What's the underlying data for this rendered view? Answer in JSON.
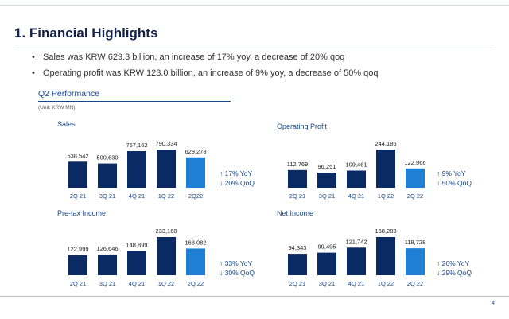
{
  "header": {
    "title": "1. Financial Highlights",
    "bullets": [
      "Sales was KRW 629.3 billion, an increase of 17% yoy, a decrease of 20% qoq",
      "Operating profit was KRW 123.0 billion, an increase of 9% yoy, a decrease of 50% qoq"
    ],
    "bullet_mark": "•"
  },
  "section": {
    "title": "Q2 Performance",
    "unit": "(Unit: KRW MN)"
  },
  "colors": {
    "dark_bar": "#0a2a63",
    "highlight_bar": "#1f7fd4",
    "accent": "#15478c"
  },
  "chart_data": [
    {
      "type": "bar",
      "title": "Sales",
      "categories": [
        "2Q 21",
        "3Q 21",
        "4Q 21",
        "1Q 22",
        "2Q22"
      ],
      "values": [
        538542,
        500630,
        757162,
        790334,
        629278
      ],
      "labels": [
        "538,542",
        "500,630",
        "757,162",
        "790,334",
        "629,278"
      ],
      "highlight_index": 4,
      "change_lines": [
        "↑ 17%  YoY",
        "↓ 20% QoQ"
      ]
    },
    {
      "type": "bar",
      "title": "Operating Profit",
      "categories": [
        "2Q 21",
        "3Q 21",
        "4Q 21",
        "1Q 22",
        "2Q 22"
      ],
      "values": [
        112769,
        96251,
        109461,
        244186,
        122966
      ],
      "labels": [
        "112,769",
        "96,251",
        "109,461",
        "244,186",
        "122,966"
      ],
      "highlight_index": 4,
      "change_lines": [
        "↑ 9%   YoY",
        "↓ 50% QoQ"
      ]
    },
    {
      "type": "bar",
      "title": "Pre-tax Income",
      "categories": [
        "2Q 21",
        "3Q 21",
        "4Q 21",
        "1Q 22",
        "2Q 22"
      ],
      "values": [
        122999,
        126646,
        148899,
        233160,
        163082
      ],
      "labels": [
        "122,999",
        "126,646",
        "148,899",
        "233,160",
        "163,082"
      ],
      "highlight_index": 4,
      "change_lines": [
        "↑ 33%  YoY",
        "↓ 30% QoQ"
      ]
    },
    {
      "type": "bar",
      "title": "Net Income",
      "categories": [
        "2Q 21",
        "3Q 21",
        "4Q 21",
        "1Q 22",
        "2Q 22"
      ],
      "values": [
        94343,
        99495,
        121742,
        168283,
        118728
      ],
      "labels": [
        "94,343",
        "99,495",
        "121,742",
        "168,283",
        "118,728"
      ],
      "highlight_index": 4,
      "change_lines": [
        "↑ 26%  YoY",
        "↓ 29% QoQ"
      ]
    }
  ],
  "footer": {
    "page_number": "4"
  }
}
